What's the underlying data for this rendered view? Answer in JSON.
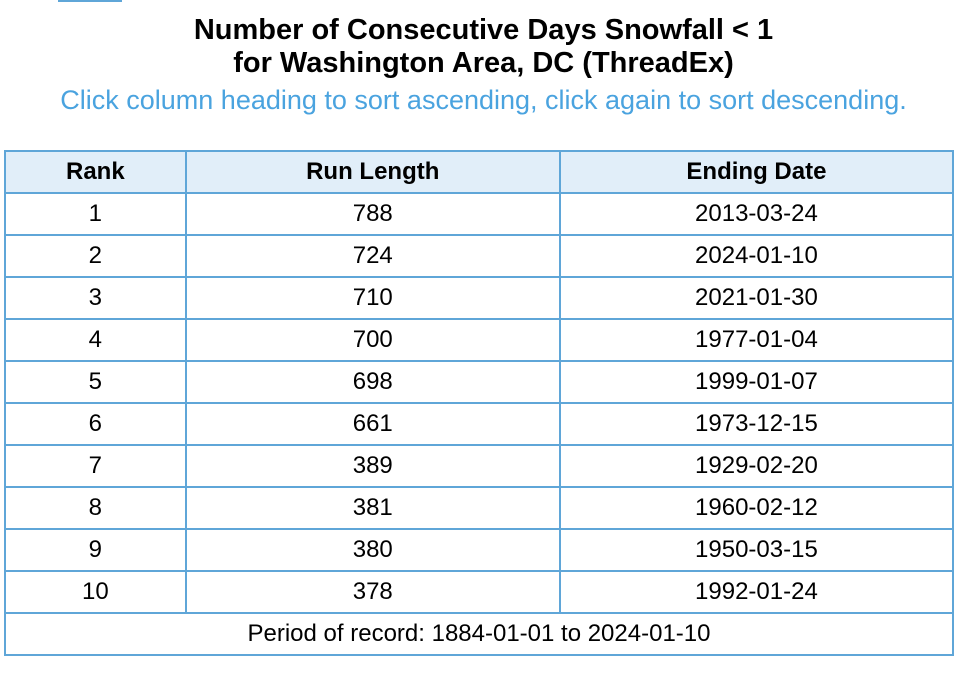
{
  "title_line1": "Number of Consecutive Days Snowfall < 1",
  "title_line2": "for Washington Area, DC (ThreadEx)",
  "sort_hint": "Click column heading to sort ascending, click again to sort descending.",
  "table": {
    "headers": [
      "Rank",
      "Run Length",
      "Ending Date"
    ],
    "rows": [
      [
        "1",
        "788",
        "2013-03-24"
      ],
      [
        "2",
        "724",
        "2024-01-10"
      ],
      [
        "3",
        "710",
        "2021-01-30"
      ],
      [
        "4",
        "700",
        "1977-01-04"
      ],
      [
        "5",
        "698",
        "1999-01-07"
      ],
      [
        "6",
        "661",
        "1973-12-15"
      ],
      [
        "7",
        "389",
        "1929-02-20"
      ],
      [
        "8",
        "381",
        "1960-02-12"
      ],
      [
        "9",
        "380",
        "1950-03-15"
      ],
      [
        "10",
        "378",
        "1992-01-24"
      ]
    ],
    "footer": "Period of record: 1884-01-01 to 2024-01-10"
  },
  "colors": {
    "border": "#5fa6d8",
    "header_bg": "#e1eef9",
    "hint_text": "#4aa3df"
  }
}
